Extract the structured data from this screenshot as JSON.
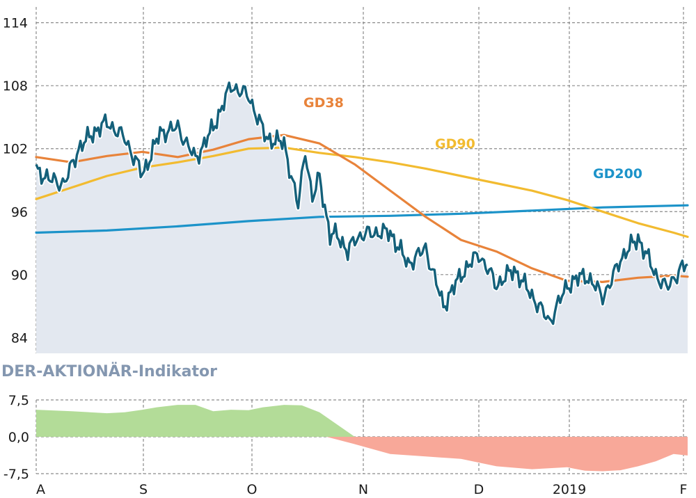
{
  "chart_data": [
    {
      "type": "line",
      "title": "",
      "ylim": [
        82.5,
        115.5
      ],
      "y_ticks": [
        "114",
        "108",
        "102",
        "96",
        "90",
        "84"
      ],
      "grid": true,
      "colors": {
        "price": "#14607a",
        "price_fill": "#e3e8f0",
        "gd38": "#e8833a",
        "gd90": "#f2bb30",
        "gd200": "#1c93c9",
        "grid": "#8a8a8a"
      },
      "x_range": [
        0,
        184
      ],
      "series": [
        {
          "key": "price",
          "x": [
            0,
            4,
            8,
            12,
            16,
            20,
            25,
            30,
            35,
            40,
            45,
            50,
            55,
            60,
            65,
            70,
            74,
            76,
            78,
            80,
            83,
            85,
            88,
            90,
            95,
            100,
            105,
            110,
            115,
            120,
            125,
            130,
            135,
            140,
            145,
            150,
            155,
            160,
            162,
            165,
            170,
            175,
            178,
            182,
            184
          ],
          "values": [
            100,
            99,
            98.7,
            102,
            103.5,
            104.5,
            103,
            99.5,
            103.5,
            104,
            101,
            104,
            108,
            107,
            103,
            102.5,
            96.5,
            102,
            97,
            99.5,
            93.5,
            94,
            92,
            93.5,
            94,
            94,
            91,
            92.5,
            87,
            90,
            92,
            89,
            90.5,
            88,
            85.5,
            89,
            90,
            88,
            89,
            91.5,
            93.5,
            90,
            88.7,
            90.5,
            91
          ]
        },
        {
          "key": "gd38",
          "name": "GD38",
          "x": [
            0,
            10,
            20,
            30,
            40,
            50,
            60,
            70,
            80,
            90,
            100,
            110,
            120,
            130,
            140,
            150,
            160,
            170,
            180,
            184
          ],
          "values": [
            101.2,
            100.7,
            101.3,
            101.7,
            101.2,
            101.9,
            102.9,
            103.3,
            102.5,
            100.5,
            98,
            95.5,
            93.3,
            92.2,
            90.6,
            89.4,
            89.3,
            89.7,
            89.9,
            89.8
          ]
        },
        {
          "key": "gd90",
          "name": "GD90",
          "x": [
            0,
            10,
            20,
            30,
            40,
            50,
            60,
            70,
            80,
            90,
            100,
            110,
            120,
            130,
            140,
            150,
            160,
            170,
            180,
            184
          ],
          "values": [
            97.2,
            98.3,
            99.4,
            100.2,
            100.7,
            101.3,
            102.0,
            102.1,
            101.6,
            101.2,
            100.7,
            100.1,
            99.4,
            98.7,
            98.0,
            97.1,
            96.0,
            94.9,
            94.0,
            93.6
          ]
        },
        {
          "key": "gd200",
          "name": "GD200",
          "x": [
            0,
            20,
            40,
            60,
            80,
            100,
            120,
            140,
            160,
            184
          ],
          "values": [
            94.0,
            94.2,
            94.6,
            95.1,
            95.5,
            95.6,
            95.8,
            96.1,
            96.4,
            96.6
          ]
        }
      ]
    },
    {
      "type": "area",
      "title": "DER-AKTIONÄR-Indikator",
      "ylim": [
        -7.5,
        7.5
      ],
      "y_ticks": [
        "7,5",
        "0,0",
        "-7,5"
      ],
      "x_ticks": [
        "A",
        "S",
        "O",
        "N",
        "D",
        "2019",
        "F"
      ],
      "grid": true,
      "colors": {
        "positive": "#b3dc98",
        "negative": "#f8a899"
      },
      "x_range": [
        0,
        184
      ],
      "series": [
        {
          "key": "indicator",
          "x": [
            0,
            10,
            20,
            25,
            30,
            34,
            40,
            45,
            50,
            55,
            60,
            64,
            70,
            75,
            80,
            82,
            90,
            100,
            110,
            120,
            130,
            140,
            150,
            152,
            155,
            160,
            165,
            170,
            175,
            180,
            184
          ],
          "values": [
            5.5,
            5.2,
            4.8,
            5,
            5.5,
            6,
            6.5,
            6.5,
            5.2,
            5.5,
            5.4,
            6,
            6.5,
            6.4,
            5,
            4,
            -1.5,
            -3.5,
            -4,
            -4.5,
            -6,
            -6.6,
            -6.2,
            -6.5,
            -6.9,
            -7.0,
            -6.8,
            -6,
            -5,
            -3.5,
            -3.8
          ]
        }
      ]
    }
  ]
}
